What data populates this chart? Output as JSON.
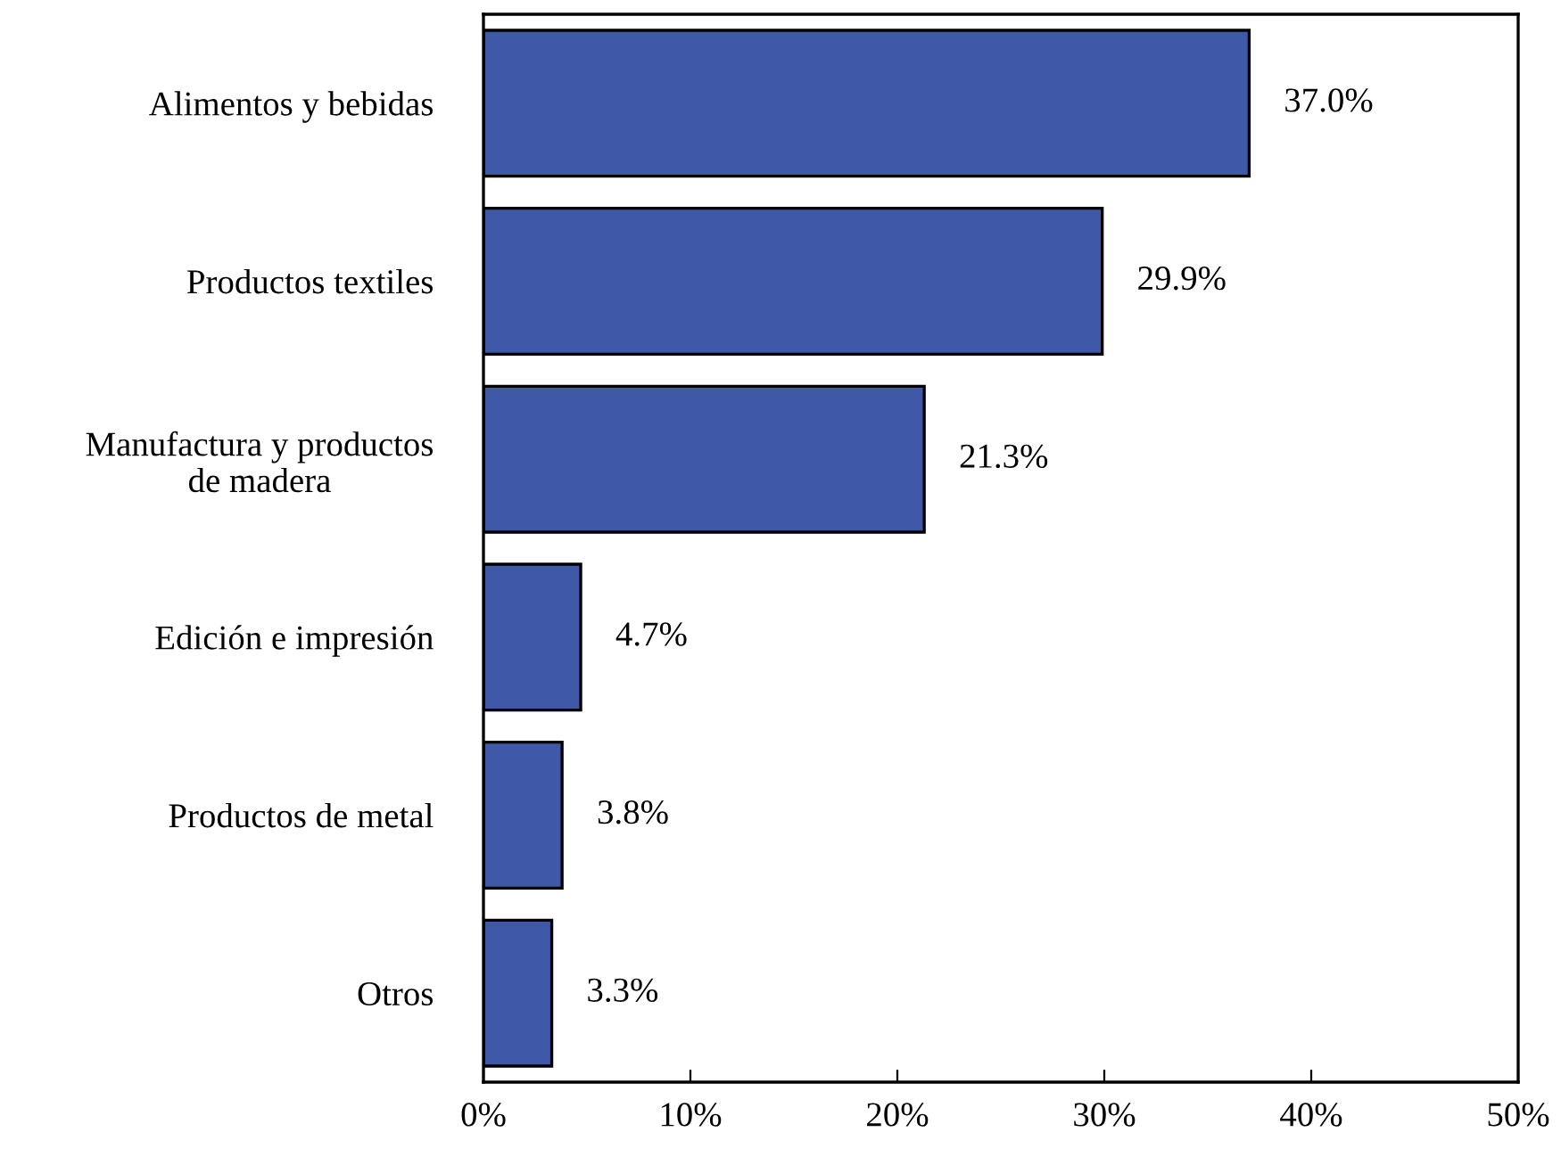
{
  "chart_data": {
    "type": "bar",
    "orientation": "horizontal",
    "categories": [
      "Alimentos y bebidas",
      "Productos textiles",
      "Manufactura y productos\nde madera",
      "Edición e impresión",
      "Productos de metal",
      "Otros"
    ],
    "values": [
      37.0,
      29.9,
      21.3,
      4.7,
      3.8,
      3.3
    ],
    "value_labels": [
      "37.0%",
      "29.9%",
      "21.3%",
      "4.7%",
      "3.8%",
      "3.3%"
    ],
    "color": "#3f58a8",
    "xlim": [
      0,
      50
    ],
    "xticks": [
      {
        "value": 0,
        "label": "0%"
      },
      {
        "value": 10,
        "label": "10%"
      },
      {
        "value": 20,
        "label": "20%"
      },
      {
        "value": 30,
        "label": "30%"
      },
      {
        "value": 40,
        "label": "40%"
      },
      {
        "value": 50,
        "label": "50%"
      }
    ],
    "grid": false,
    "legend": false
  }
}
